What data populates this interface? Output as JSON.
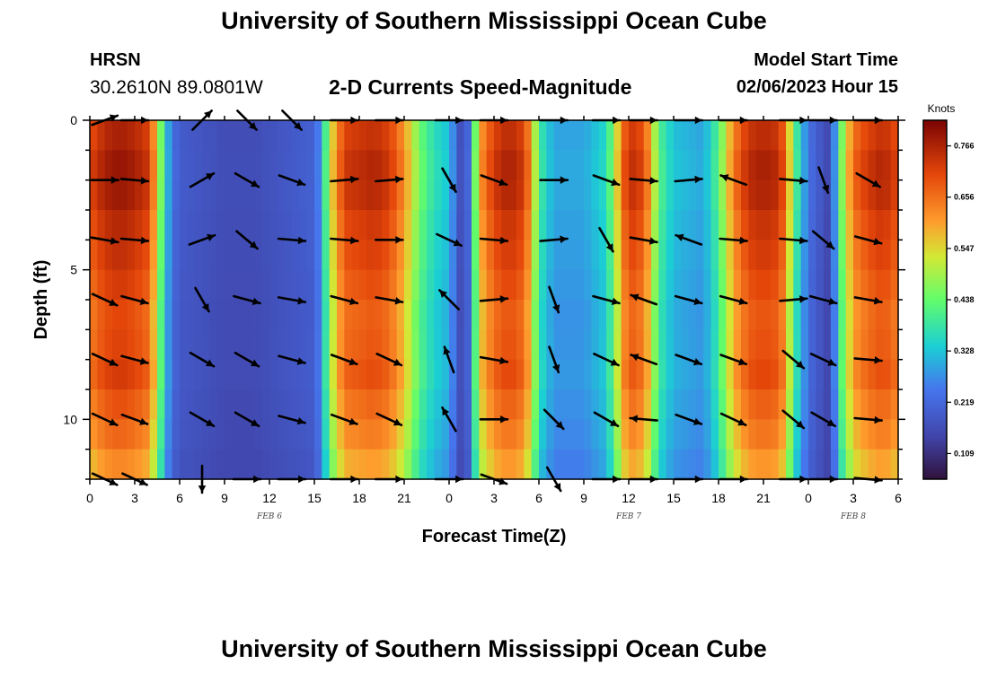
{
  "header": {
    "title": "University of Southern Mississippi Ocean Cube",
    "station": "HRSN",
    "coords": "30.2610N  89.0801W",
    "subtitle": "2-D Currents Speed-Magnitude",
    "model_start_label": "Model Start Time",
    "model_start_value": "02/06/2023 Hour 15"
  },
  "footer": {
    "title": "University of Southern Mississippi Ocean Cube"
  },
  "chart_data": {
    "type": "heatmap",
    "title": "2-D Currents Speed-Magnitude",
    "xlabel": "Forecast Time(Z)",
    "ylabel": "Depth (ft)",
    "x_range": [
      0,
      54
    ],
    "y_range": [
      0,
      12
    ],
    "x_tick_labels": [
      "0",
      "3",
      "6",
      "9",
      "12",
      "15",
      "18",
      "21",
      "0",
      "3",
      "6",
      "9",
      "12",
      "15",
      "18",
      "21",
      "0",
      "3",
      "6"
    ],
    "y_tick_labels": [
      "0",
      "5",
      "10"
    ],
    "y_tick_values": [
      0,
      5,
      10
    ],
    "date_labels": [
      {
        "text": "FEB 6",
        "hour": 12
      },
      {
        "text": "FEB 7",
        "hour": 36
      },
      {
        "text": "FEB 8",
        "hour": 51
      }
    ],
    "colorbar": {
      "unit": "Knots",
      "ticks": [
        "0.766",
        "0.656",
        "0.547",
        "0.438",
        "0.328",
        "0.219",
        "0.109"
      ],
      "min": 0.06,
      "max": 0.84
    },
    "speed_profile_hours": [
      0,
      1,
      2,
      3,
      4,
      4.5,
      5,
      5.5,
      6,
      7,
      9,
      11,
      13,
      15,
      15.5,
      16,
      17,
      19,
      20,
      21,
      22,
      23,
      24,
      24.5,
      25,
      25.5,
      26,
      27,
      28,
      29,
      29.5,
      30,
      31,
      33,
      34.5,
      35,
      35.5,
      36,
      37,
      37.5,
      38,
      39,
      41,
      42,
      43,
      44,
      45,
      46,
      46.5,
      47,
      48,
      49,
      49.5,
      50,
      51,
      52,
      53,
      54
    ],
    "speed_profile_knots": [
      0.7,
      0.76,
      0.78,
      0.76,
      0.72,
      0.55,
      0.36,
      0.24,
      0.2,
      0.19,
      0.17,
      0.17,
      0.19,
      0.21,
      0.3,
      0.52,
      0.72,
      0.75,
      0.72,
      0.62,
      0.45,
      0.37,
      0.33,
      0.22,
      0.14,
      0.3,
      0.6,
      0.72,
      0.76,
      0.72,
      0.6,
      0.4,
      0.3,
      0.3,
      0.36,
      0.48,
      0.64,
      0.74,
      0.7,
      0.58,
      0.42,
      0.33,
      0.3,
      0.42,
      0.64,
      0.74,
      0.76,
      0.74,
      0.66,
      0.44,
      0.24,
      0.18,
      0.15,
      0.4,
      0.66,
      0.72,
      0.75,
      0.7
    ],
    "depth_factors": [
      1.02,
      1.05,
      1.04,
      1.0,
      0.98,
      0.95,
      0.92,
      0.93,
      0.95,
      0.9,
      0.86,
      0.8
    ],
    "vectors": {
      "hours": [
        1,
        3,
        7.5,
        10.5,
        13.5,
        17,
        20,
        24,
        27,
        31,
        34.5,
        37,
        40,
        43,
        47,
        49,
        52
      ],
      "depths": [
        0,
        2,
        4,
        6,
        8,
        10,
        12
      ],
      "directions_deg": [
        [
          -20,
          0,
          -45,
          45,
          45,
          0,
          0,
          0,
          0,
          0,
          0,
          0,
          0,
          0,
          0,
          0,
          0
        ],
        [
          0,
          5,
          -30,
          30,
          20,
          -5,
          -5,
          60,
          20,
          0,
          20,
          5,
          -5,
          200,
          5,
          70,
          30
        ],
        [
          10,
          5,
          -20,
          40,
          5,
          5,
          0,
          25,
          5,
          -5,
          60,
          10,
          200,
          5,
          5,
          40,
          15
        ],
        [
          25,
          15,
          60,
          15,
          10,
          15,
          10,
          225,
          -5,
          70,
          15,
          200,
          15,
          15,
          -5,
          15,
          10
        ],
        [
          25,
          15,
          30,
          30,
          15,
          20,
          25,
          250,
          10,
          70,
          25,
          200,
          20,
          20,
          40,
          25,
          5
        ],
        [
          25,
          20,
          30,
          30,
          15,
          20,
          25,
          240,
          0,
          45,
          30,
          185,
          20,
          25,
          40,
          30,
          5
        ],
        [
          25,
          25,
          90,
          0,
          0,
          0,
          0,
          0,
          20,
          60,
          0,
          0,
          0,
          0,
          0,
          0,
          5
        ]
      ]
    }
  }
}
